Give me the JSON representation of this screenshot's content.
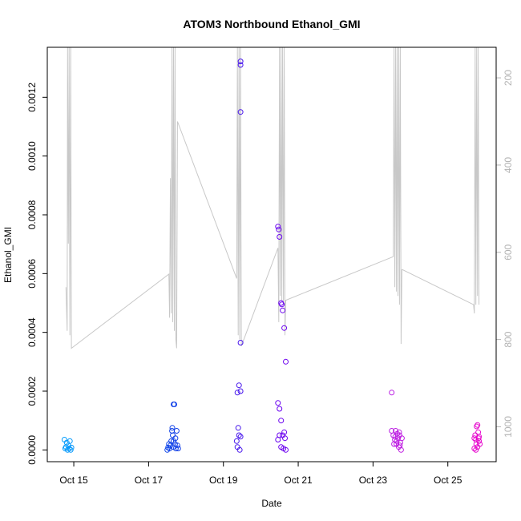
{
  "chart_data": {
    "type": "scatter",
    "title": "ATOM3 Northbound Ethanol_GMI",
    "xlabel": "Date",
    "ylabel": "Ethanol_GMI",
    "xlim": [
      "2016-10-14T07:00",
      "2016-10-26T07:00"
    ],
    "ylim": [
      -4e-05,
      0.00137
    ],
    "y2lim": [
      1080,
      130
    ],
    "y_ticks": [
      0.0,
      0.0002,
      0.0004,
      0.0006,
      0.0008,
      0.001,
      0.0012
    ],
    "y_tick_labels": [
      "0.0000",
      "0.0002",
      "0.0004",
      "0.0006",
      "0.0008",
      "0.0010",
      "0.0012"
    ],
    "x_ticks": [
      "2016-10-15",
      "2016-10-17",
      "2016-10-19",
      "2016-10-21",
      "2016-10-23",
      "2016-10-25"
    ],
    "x_tick_labels": [
      "Oct 15",
      "Oct 17",
      "Oct 19",
      "Oct 21",
      "Oct 23",
      "Oct 25"
    ],
    "y2_ticks": [
      200,
      400,
      600,
      800,
      1000
    ],
    "y2_tick_labels": [
      "200",
      "400",
      "600",
      "800",
      "1000"
    ],
    "grid": false,
    "series": [
      {
        "kind": "points",
        "points": [
          [
            "2016-10-14T18:00",
            3.5e-05
          ],
          [
            "2016-10-14T19:00",
            1e-05
          ],
          [
            "2016-10-14T19:30",
            2.5e-05
          ],
          [
            "2016-10-14T20:00",
            0.0
          ],
          [
            "2016-10-14T20:30",
            1.5e-05
          ],
          [
            "2016-10-14T21:00",
            5e-06
          ],
          [
            "2016-10-14T21:30",
            3e-05
          ],
          [
            "2016-10-14T22:00",
            0.0
          ],
          [
            "2016-10-14T22:30",
            8e-06
          ],
          [
            "2016-10-14T18:30",
            5e-06
          ],
          [
            "2016-10-17T12:00",
            0.0
          ],
          [
            "2016-10-17T12:30",
            8e-06
          ],
          [
            "2016-10-17T13:00",
            2e-05
          ],
          [
            "2016-10-17T13:30",
            5e-06
          ],
          [
            "2016-10-17T14:00",
            1.5e-05
          ],
          [
            "2016-10-17T14:30",
            3e-05
          ],
          [
            "2016-10-17T15:00",
            6.5e-05
          ],
          [
            "2016-10-17T15:15",
            7.5e-05
          ],
          [
            "2016-10-17T15:30",
            5e-05
          ],
          [
            "2016-10-17T16:00",
            0.000155
          ],
          [
            "2016-10-17T16:30",
            0.000155
          ],
          [
            "2016-10-17T16:00",
            3e-05
          ],
          [
            "2016-10-17T17:00",
            2e-05
          ],
          [
            "2016-10-17T17:30",
            5e-06
          ],
          [
            "2016-10-17T18:00",
            6.5e-05
          ],
          [
            "2016-10-17T18:30",
            1.5e-05
          ],
          [
            "2016-10-17T19:00",
            5e-06
          ],
          [
            "2016-10-17T15:45",
            1e-05
          ],
          [
            "2016-10-17T17:15",
            4e-05
          ],
          [
            "2016-10-19T09:00",
            0.000195
          ],
          [
            "2016-10-19T10:00",
            0.00022
          ],
          [
            "2016-10-19T11:00",
            0.0002
          ],
          [
            "2016-10-19T09:30",
            7.5e-05
          ],
          [
            "2016-10-19T10:00",
            5e-05
          ],
          [
            "2016-10-19T11:00",
            4.5e-05
          ],
          [
            "2016-10-19T09:00",
            1e-05
          ],
          [
            "2016-10-19T10:30",
            0.0
          ],
          [
            "2016-10-19T08:30",
            3e-05
          ],
          [
            "2016-10-19T11:00",
            0.000365
          ],
          [
            "2016-10-19T11:00",
            0.00115
          ],
          [
            "2016-10-19T11:00",
            0.00131
          ],
          [
            "2016-10-19T11:00",
            0.001322
          ],
          [
            "2016-10-20T11:00",
            0.00016
          ],
          [
            "2016-10-20T12:00",
            0.00014
          ],
          [
            "2016-10-20T13:00",
            0.0001
          ],
          [
            "2016-10-20T11:00",
            0.00076
          ],
          [
            "2016-10-20T11:30",
            0.00075
          ],
          [
            "2016-10-20T12:00",
            0.000725
          ],
          [
            "2016-10-20T13:00",
            0.0005
          ],
          [
            "2016-10-20T13:30",
            0.000495
          ],
          [
            "2016-10-20T14:00",
            0.000475
          ],
          [
            "2016-10-20T15:00",
            0.000415
          ],
          [
            "2016-10-20T16:00",
            0.0003
          ],
          [
            "2016-10-20T11:00",
            3.5e-05
          ],
          [
            "2016-10-20T12:00",
            5e-05
          ],
          [
            "2016-10-20T14:00",
            5e-05
          ],
          [
            "2016-10-20T15:00",
            6e-05
          ],
          [
            "2016-10-20T13:00",
            1e-05
          ],
          [
            "2016-10-20T14:30",
            5e-06
          ],
          [
            "2016-10-20T16:00",
            0.0
          ],
          [
            "2016-10-20T15:30",
            4e-05
          ],
          [
            "2016-10-23T12:00",
            0.000195
          ],
          [
            "2016-10-23T12:00",
            6.5e-05
          ],
          [
            "2016-10-23T13:00",
            5e-05
          ],
          [
            "2016-10-23T14:00",
            3.5e-05
          ],
          [
            "2016-10-23T14:30",
            6.5e-05
          ],
          [
            "2016-10-23T15:00",
            2e-05
          ],
          [
            "2016-10-23T15:30",
            5.5e-05
          ],
          [
            "2016-10-23T16:00",
            4e-05
          ],
          [
            "2016-10-23T16:30",
            1e-05
          ],
          [
            "2016-10-23T17:00",
            5e-05
          ],
          [
            "2016-10-23T17:30",
            2.5e-05
          ],
          [
            "2016-10-23T18:00",
            0.0
          ],
          [
            "2016-10-23T18:30",
            4e-05
          ],
          [
            "2016-10-23T13:30",
            2e-05
          ],
          [
            "2016-10-23T15:15",
            3e-05
          ],
          [
            "2016-10-23T16:45",
            6e-05
          ],
          [
            "2016-10-23T14:15",
            4.5e-05
          ],
          [
            "2016-10-23T17:15",
            1.5e-05
          ],
          [
            "2016-10-25T17:00",
            4e-05
          ],
          [
            "2016-10-25T17:30",
            5e-05
          ],
          [
            "2016-10-25T18:00",
            3.5e-05
          ],
          [
            "2016-10-25T18:30",
            8e-05
          ],
          [
            "2016-10-25T19:00",
            8.5e-05
          ],
          [
            "2016-10-25T19:30",
            6e-05
          ],
          [
            "2016-10-25T20:00",
            4.5e-05
          ],
          [
            "2016-10-25T20:30",
            2e-05
          ],
          [
            "2016-10-25T17:00",
            5e-06
          ],
          [
            "2016-10-25T18:00",
            0.0
          ],
          [
            "2016-10-25T19:00",
            1e-05
          ],
          [
            "2016-10-25T20:00",
            3e-05
          ],
          [
            "2016-10-25T18:15",
            2e-05
          ],
          [
            "2016-10-25T19:45",
            4e-05
          ]
        ]
      },
      {
        "kind": "line",
        "axis": "right",
        "color": "#c8c8c8",
        "points": [
          [
            "2016-10-14T19:00",
            680
          ],
          [
            "2016-10-14T19:45",
            780
          ],
          [
            "2016-10-14T20:00",
            130
          ],
          [
            "2016-10-14T20:30",
            580
          ],
          [
            "2016-10-14T21:00",
            130
          ],
          [
            "2016-10-14T21:30",
            790
          ],
          [
            "2016-10-14T22:00",
            130
          ],
          [
            "2016-10-14T22:30",
            820
          ],
          [
            "2016-10-17T13:00",
            650
          ],
          [
            "2016-10-17T13:30",
            750
          ],
          [
            "2016-10-17T14:00",
            430
          ],
          [
            "2016-10-17T14:30",
            740
          ],
          [
            "2016-10-17T15:00",
            130
          ],
          [
            "2016-10-17T15:30",
            760
          ],
          [
            "2016-10-17T16:00",
            130
          ],
          [
            "2016-10-17T16:30",
            780
          ],
          [
            "2016-10-17T17:00",
            130
          ],
          [
            "2016-10-17T17:30",
            800
          ],
          [
            "2016-10-17T18:00",
            820
          ],
          [
            "2016-10-17T18:30",
            300
          ],
          [
            "2016-10-19T08:30",
            660
          ],
          [
            "2016-10-19T09:00",
            130
          ],
          [
            "2016-10-19T09:30",
            790
          ],
          [
            "2016-10-19T10:00",
            130
          ],
          [
            "2016-10-19T10:30",
            800
          ],
          [
            "2016-10-19T11:00",
            130
          ],
          [
            "2016-10-19T11:30",
            815
          ],
          [
            "2016-10-20T11:00",
            590
          ],
          [
            "2016-10-20T11:30",
            760
          ],
          [
            "2016-10-20T12:00",
            130
          ],
          [
            "2016-10-20T12:30",
            700
          ],
          [
            "2016-10-20T13:00",
            130
          ],
          [
            "2016-10-20T13:30",
            710
          ],
          [
            "2016-10-20T14:00",
            130
          ],
          [
            "2016-10-20T14:30",
            720
          ],
          [
            "2016-10-20T15:00",
            130
          ],
          [
            "2016-10-20T15:30",
            790
          ],
          [
            "2016-10-20T16:00",
            710
          ],
          [
            "2016-10-23T13:00",
            610
          ],
          [
            "2016-10-23T13:30",
            130
          ],
          [
            "2016-10-23T14:00",
            680
          ],
          [
            "2016-10-23T14:30",
            130
          ],
          [
            "2016-10-23T15:00",
            690
          ],
          [
            "2016-10-23T15:30",
            130
          ],
          [
            "2016-10-23T16:00",
            700
          ],
          [
            "2016-10-23T16:30",
            130
          ],
          [
            "2016-10-23T17:00",
            720
          ],
          [
            "2016-10-23T17:30",
            130
          ],
          [
            "2016-10-23T18:00",
            810
          ],
          [
            "2016-10-23T18:30",
            640
          ],
          [
            "2016-10-23T19:00",
            640
          ],
          [
            "2016-10-25T16:30",
            720
          ],
          [
            "2016-10-25T17:00",
            740
          ],
          [
            "2016-10-25T17:30",
            130
          ],
          [
            "2016-10-25T18:00",
            720
          ],
          [
            "2016-10-25T18:30",
            130
          ],
          [
            "2016-10-25T19:00",
            700
          ],
          [
            "2016-10-25T19:30",
            130
          ],
          [
            "2016-10-25T20:00",
            720
          ]
        ]
      }
    ]
  }
}
